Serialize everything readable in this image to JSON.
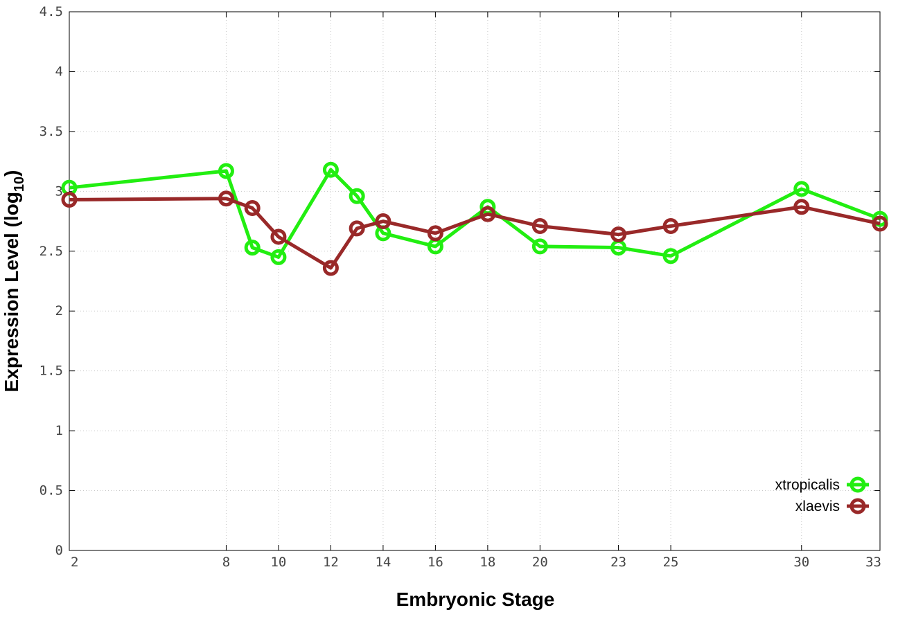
{
  "chart_data": {
    "type": "line",
    "title": "",
    "xlabel": "Embryonic Stage",
    "ylabel_main": "Expression Level (log",
    "ylabel_sub": "10",
    "ylabel_close": ")",
    "xlim": [
      2,
      33
    ],
    "ylim": [
      0,
      4.5
    ],
    "x_ticks": [
      2,
      8,
      10,
      12,
      14,
      16,
      18,
      20,
      23,
      25,
      30,
      33
    ],
    "x_tick_labels": [
      "2",
      "8",
      "10",
      "12",
      "14",
      "16",
      "18",
      "20",
      "23",
      "25",
      "30",
      "33"
    ],
    "y_ticks": [
      0,
      0.5,
      1,
      1.5,
      2,
      2.5,
      3,
      3.5,
      4,
      4.5
    ],
    "y_tick_labels": [
      "0",
      "0.5",
      "1",
      "1.5",
      "2",
      "2.5",
      "3",
      "3.5",
      "4",
      "4.5"
    ],
    "grid": true,
    "legend_position": "bottom-right",
    "x": [
      2,
      8,
      9,
      10,
      12,
      13,
      14,
      16,
      18,
      20,
      23,
      25,
      30,
      33
    ],
    "series": [
      {
        "name": "xtropicalis",
        "color": "#22ee11",
        "values": [
          3.03,
          3.17,
          2.53,
          2.45,
          3.18,
          2.96,
          2.65,
          2.54,
          2.87,
          2.54,
          2.53,
          2.46,
          3.02,
          2.77
        ]
      },
      {
        "name": "xlaevis",
        "color": "#992929",
        "values": [
          2.93,
          2.94,
          2.86,
          2.62,
          2.36,
          2.69,
          2.75,
          2.65,
          2.81,
          2.71,
          2.64,
          2.71,
          2.87,
          2.73
        ]
      }
    ]
  }
}
